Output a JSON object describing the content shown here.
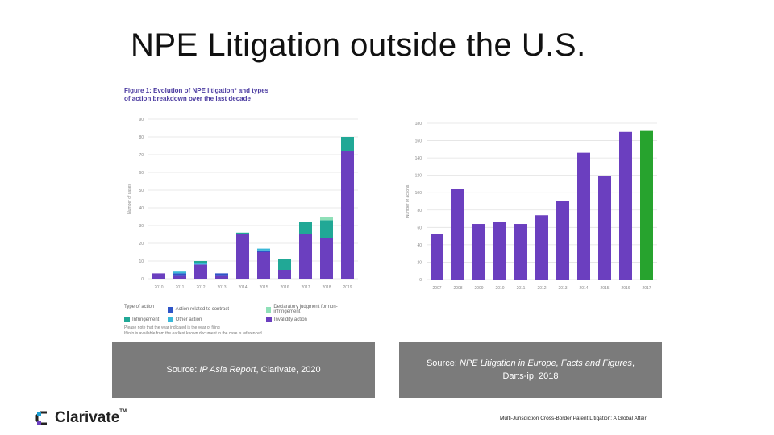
{
  "slide": {
    "title": "NPE Litigation outside the U.S.",
    "footer": "Multi-Jurisdiction Cross-Border Patent Litigation: A Global Affair",
    "logo_text": "Clarivate",
    "logo_tm": "TM"
  },
  "left_figure": {
    "heading_line1": "Figure 1: Evolution of NPE litigation* and types",
    "heading_line2": "of action breakdown over the last decade",
    "legend_title": "Type of action",
    "legend": [
      {
        "label": "Action related to contract",
        "color": "#2f55c8"
      },
      {
        "label": "Declaratory judgment for non-infringement",
        "color": "#8fe0b8"
      },
      {
        "label": "Infringement",
        "color": "#21a896"
      },
      {
        "label": "Other action",
        "color": "#3ab8d8"
      },
      {
        "label": "Invalidity action",
        "color": "#6b3fbf"
      }
    ],
    "note1": "Please note that the year indicated is the year of filing",
    "note2": "If info is available from the earliest known document in the case is referenced",
    "source_prefix": "Source: ",
    "source_title": "IP Asia Report",
    "source_suffix": ", Clarivate, 2020"
  },
  "right_figure": {
    "source_prefix": "Source: ",
    "source_title": "NPE Litigation in Europe, Facts and Figures",
    "source_suffix": ",",
    "source_line2": "Darts-ip, 2018"
  },
  "chart_data": [
    {
      "type": "bar",
      "stacked": true,
      "ylabel": "Number of cases",
      "ylim": [
        0,
        90
      ],
      "yticks": [
        0,
        10,
        20,
        30,
        40,
        50,
        60,
        70,
        80,
        90
      ],
      "categories": [
        "2010",
        "2011",
        "2012",
        "2013",
        "2014",
        "2015",
        "2016",
        "2017",
        "2018",
        "2019"
      ],
      "series": [
        {
          "name": "Invalidity action",
          "color": "#6b3fbf",
          "values": [
            3,
            2,
            8,
            2,
            25,
            15,
            5,
            25,
            23,
            72
          ]
        },
        {
          "name": "Action related to contract",
          "color": "#2f55c8",
          "values": [
            0,
            1,
            0,
            1,
            0,
            1,
            0,
            0,
            0,
            0
          ]
        },
        {
          "name": "Other action",
          "color": "#3ab8d8",
          "values": [
            0,
            1,
            1,
            0,
            0,
            1,
            0,
            0,
            0,
            0
          ]
        },
        {
          "name": "Infringement",
          "color": "#21a896",
          "values": [
            0,
            0,
            1,
            0,
            1,
            0,
            6,
            7,
            10,
            8
          ]
        },
        {
          "name": "Declaratory judgment for non-infringement",
          "color": "#8fe0b8",
          "values": [
            0,
            0,
            0,
            0,
            0,
            0,
            0,
            0,
            2,
            0
          ]
        }
      ],
      "grid": true
    },
    {
      "type": "bar",
      "ylabel": "Number of actions",
      "ylim": [
        0,
        180
      ],
      "yticks": [
        0,
        20,
        40,
        60,
        80,
        100,
        120,
        140,
        160,
        180
      ],
      "categories": [
        "2007",
        "2008",
        "2009",
        "2010",
        "2011",
        "2012",
        "2013",
        "2014",
        "2015",
        "2016",
        "2017"
      ],
      "values": [
        52,
        104,
        64,
        66,
        64,
        74,
        90,
        146,
        119,
        170,
        172
      ],
      "colors": [
        "#6b3fbf",
        "#6b3fbf",
        "#6b3fbf",
        "#6b3fbf",
        "#6b3fbf",
        "#6b3fbf",
        "#6b3fbf",
        "#6b3fbf",
        "#6b3fbf",
        "#6b3fbf",
        "#27a32e"
      ],
      "grid": true
    }
  ]
}
